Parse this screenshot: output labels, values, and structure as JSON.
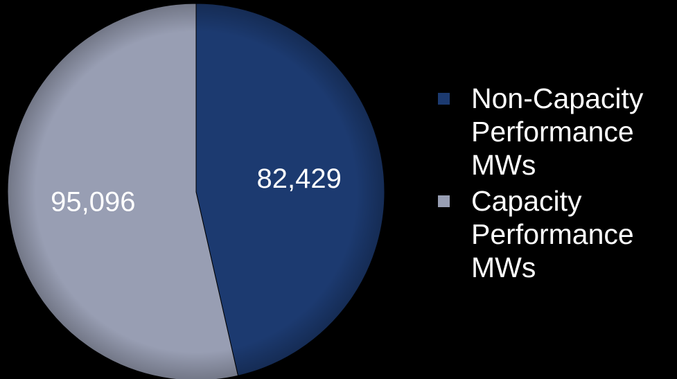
{
  "chart_data": {
    "type": "pie",
    "categories": [
      "Non-Capacity Performance MWs",
      "Capacity Performance MWs"
    ],
    "values": [
      82429,
      95096
    ],
    "value_labels": [
      "82,429",
      "95,096"
    ],
    "colors": [
      "#1c3a70",
      "#989eb3"
    ],
    "start_angle": 0,
    "direction": "clockwise",
    "legend": "right"
  }
}
